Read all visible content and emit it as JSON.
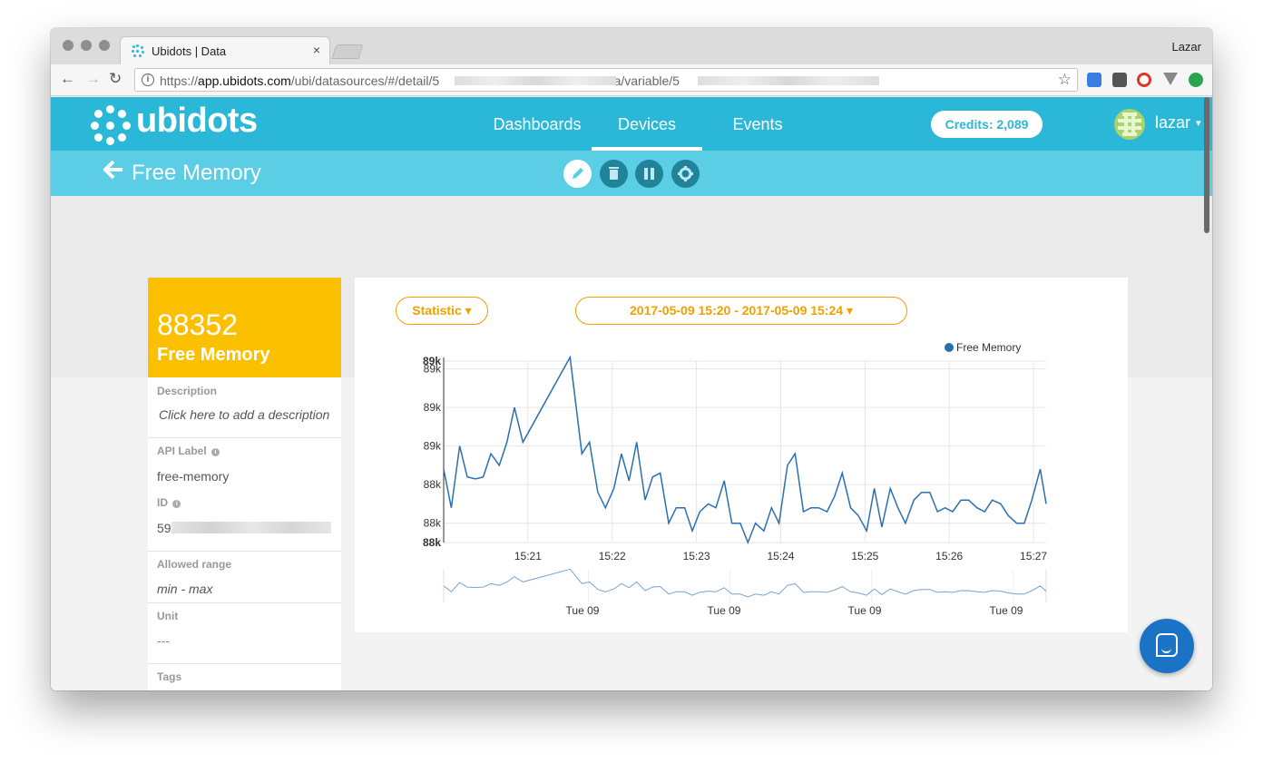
{
  "browser": {
    "tab_title": "Ubidots | Data",
    "tab_close": "×",
    "profile_name": "Lazar",
    "url_prefix": "https://",
    "url_host": "app.ubidots.com",
    "url_path1": "/ubi/datasources/#/detail/5",
    "url_path2": "'fba/variable/5",
    "back_icon": "←",
    "forward_icon": "→",
    "reload_icon": "↻",
    "star_icon": "☆"
  },
  "app": {
    "logo_text": "ubidots",
    "nav": [
      "Dashboards",
      "Devices",
      "Events"
    ],
    "active_nav": "Devices",
    "credits": "Credits: 2,089",
    "user": "lazar",
    "caret": "▾",
    "accent": "#2bb8d8"
  },
  "subbar": {
    "back_icon": "🡐",
    "title": "Free Memory",
    "edit_icon": "✎",
    "delete_icon": "🗑",
    "pause_icon": "❚❚",
    "settings_icon": "⚙"
  },
  "variable": {
    "last_value": "88352",
    "name": "Free Memory",
    "description_label": "Description",
    "description_value": "Click here to add a description",
    "api_label_label": "API Label",
    "api_label_value": "free-memory",
    "id_label": "ID",
    "id_value": "59",
    "range_label": "Allowed range",
    "range_value": "min - max",
    "unit_label": "Unit",
    "unit_value": "---",
    "tags_label": "Tags",
    "info_glyph": "i"
  },
  "filters": {
    "statistic": "Statistic ▾",
    "date_range": "2017-05-09 15:20 - 2017-05-09 15:24 ▾"
  },
  "chart_data": {
    "type": "line",
    "legend": [
      "Free Memory"
    ],
    "legend_position": "top-right",
    "series_color": "#2a6fb0",
    "y_tick_labels": [
      "89k",
      "89k",
      "89k",
      "89k",
      "88k",
      "88k",
      "88k"
    ],
    "y_tick_bold": [
      true,
      false,
      false,
      false,
      false,
      false,
      true
    ],
    "y_tick_values": [
      89120,
      89100,
      89000,
      88900,
      88800,
      88700,
      88650
    ],
    "ylim": [
      88650,
      89120
    ],
    "x_tick_labels": [
      "15:21",
      "15:22",
      "15:23",
      "15:24",
      "15:25",
      "15:26",
      "15:27"
    ],
    "x_tick_values": [
      1.0,
      2.0,
      3.0,
      4.0,
      5.0,
      6.0,
      7.0
    ],
    "xlim": [
      0.0,
      7.15
    ],
    "grid": true,
    "navigator_labels": [
      "Tue 09",
      "Tue 09",
      "Tue 09",
      "Tue 09"
    ],
    "x": [
      0.0,
      0.09,
      0.19,
      0.28,
      0.38,
      0.47,
      0.56,
      0.66,
      0.75,
      0.84,
      0.94,
      1.5,
      1.64,
      1.73,
      1.83,
      1.92,
      2.02,
      2.11,
      2.2,
      2.29,
      2.39,
      2.48,
      2.57,
      2.67,
      2.76,
      2.86,
      2.95,
      3.04,
      3.14,
      3.23,
      3.33,
      3.42,
      3.52,
      3.61,
      3.7,
      3.8,
      3.89,
      3.98,
      4.08,
      4.17,
      4.27,
      4.36,
      4.45,
      4.55,
      4.64,
      4.73,
      4.83,
      4.92,
      5.02,
      5.11,
      5.2,
      5.3,
      5.39,
      5.48,
      5.58,
      5.67,
      5.77,
      5.86,
      5.95,
      6.04,
      6.14,
      6.23,
      6.33,
      6.42,
      6.51,
      6.61,
      6.7,
      6.8,
      6.89,
      6.98,
      7.08,
      7.15
    ],
    "y": [
      88840,
      88740,
      88900,
      88820,
      88815,
      88820,
      88880,
      88850,
      88910,
      89000,
      88910,
      89130,
      88880,
      88910,
      88780,
      88740,
      88790,
      88880,
      88810,
      88910,
      88760,
      88820,
      88830,
      88700,
      88740,
      88740,
      88680,
      88730,
      88750,
      88740,
      88810,
      88700,
      88700,
      88650,
      88700,
      88680,
      88740,
      88700,
      88850,
      88880,
      88730,
      88740,
      88740,
      88730,
      88770,
      88830,
      88740,
      88720,
      88680,
      88790,
      88690,
      88790,
      88740,
      88700,
      88760,
      88780,
      88780,
      88730,
      88740,
      88730,
      88760,
      88760,
      88740,
      88730,
      88760,
      88750,
      88720,
      88700,
      88700,
      88760,
      88840,
      88750
    ]
  }
}
